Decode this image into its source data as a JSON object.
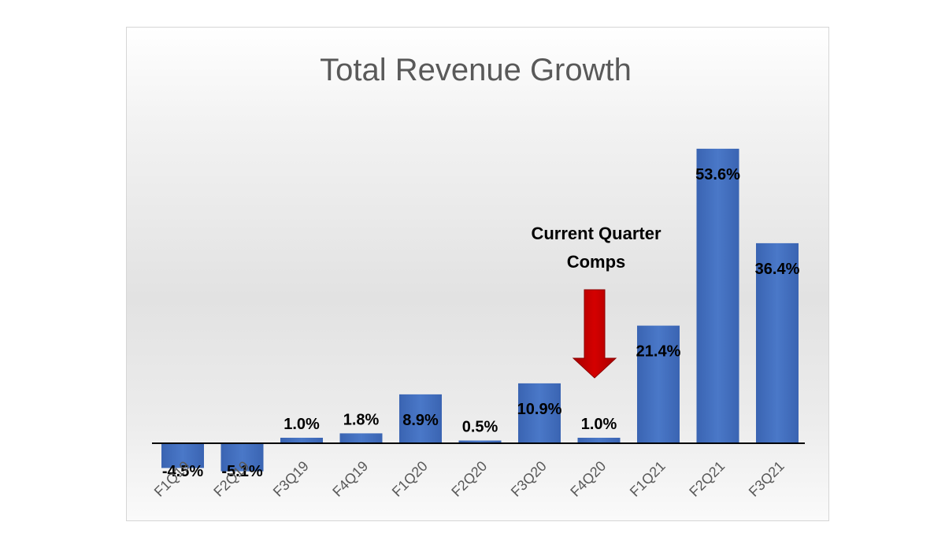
{
  "chart_data": {
    "type": "bar",
    "title": "Total Revenue Growth",
    "categories": [
      "F1Q19",
      "F2Q19",
      "F3Q19",
      "F4Q19",
      "F1Q20",
      "F2Q20",
      "F3Q20",
      "F4Q20",
      "F1Q21",
      "F2Q21",
      "F3Q21"
    ],
    "values": [
      -4.5,
      -5.1,
      1.0,
      1.8,
      8.9,
      0.5,
      10.9,
      1.0,
      21.4,
      53.6,
      36.4
    ],
    "data_labels": [
      "-4.5%",
      "-5.1%",
      "1.0%",
      "1.8%",
      "8.9%",
      "0.5%",
      "10.9%",
      "1.0%",
      "21.4%",
      "53.6%",
      "36.4%"
    ],
    "annotation": {
      "lines": [
        "Current Quarter",
        "Comps"
      ],
      "points_to": "F4Q20"
    },
    "grid": false,
    "legend": "none",
    "colors": {
      "bar": "#4472c4",
      "arrow": "#c00000",
      "title": "#595959",
      "axis": "#000000",
      "tick": "#595959"
    }
  }
}
